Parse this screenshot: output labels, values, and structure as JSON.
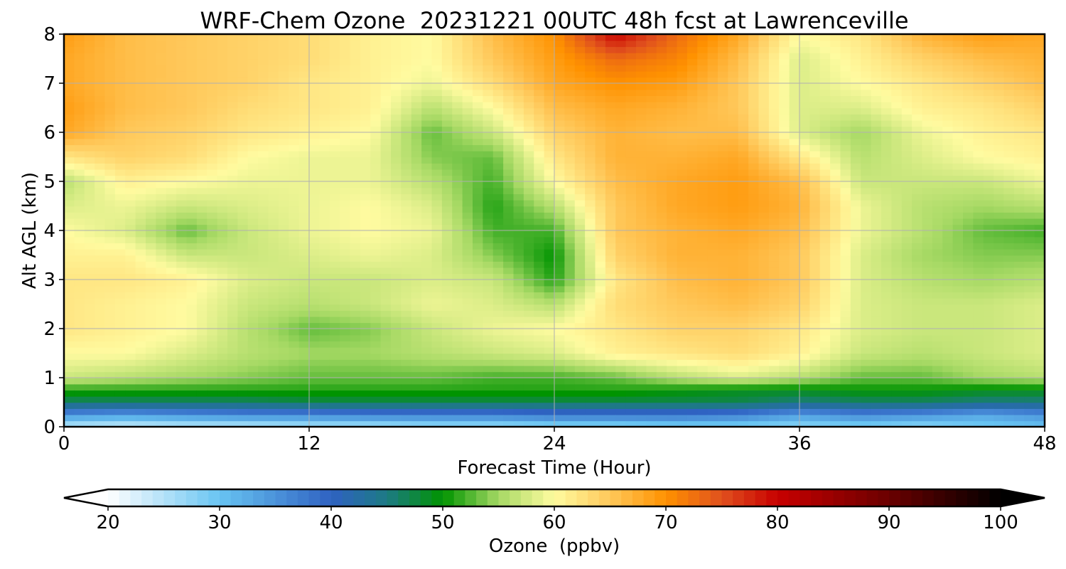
{
  "chart_data": {
    "type": "heatmap",
    "title": "WRF-Chem Ozone  20231221 00UTC 48h fcst at Lawrenceville",
    "xlabel": "Forecast Time (Hour)",
    "ylabel": "Alt AGL (km)",
    "xlim": [
      0,
      48
    ],
    "ylim": [
      0,
      8
    ],
    "x_ticks": [
      0,
      12,
      24,
      36,
      48
    ],
    "y_ticks": [
      0,
      1,
      2,
      3,
      4,
      5,
      6,
      7,
      8
    ],
    "grid": true,
    "x": [
      0,
      3,
      6,
      9,
      12,
      15,
      18,
      21,
      24,
      27,
      30,
      33,
      36,
      39,
      42,
      45,
      48
    ],
    "y": [
      0,
      0.25,
      0.5,
      0.75,
      1,
      1.5,
      2,
      2.5,
      3,
      3.5,
      4,
      4.5,
      5,
      5.5,
      6,
      6.5,
      7,
      7.5,
      8
    ],
    "values": [
      [
        24,
        23,
        24,
        24,
        25,
        25,
        26,
        26,
        27,
        27,
        28,
        28,
        27,
        28,
        27,
        29,
        30
      ],
      [
        35,
        34,
        35,
        36,
        36,
        37,
        37,
        37,
        38,
        38,
        38,
        37,
        34,
        36,
        35,
        33,
        35
      ],
      [
        46,
        46,
        46,
        46,
        47,
        47,
        47,
        47,
        47,
        47,
        47,
        47,
        45,
        46,
        46,
        45,
        45
      ],
      [
        51,
        51,
        51,
        51,
        51,
        51,
        51,
        51,
        51,
        51,
        50,
        49,
        49,
        50,
        50,
        49,
        49
      ],
      [
        57,
        56,
        55,
        54,
        53,
        53,
        53,
        52,
        52,
        53,
        56,
        58,
        56,
        53,
        53,
        55,
        56
      ],
      [
        60,
        60,
        58,
        56,
        55,
        55,
        56,
        57,
        58,
        61,
        62,
        63,
        61,
        57,
        56,
        57,
        58
      ],
      [
        62,
        61,
        60,
        56,
        53,
        54,
        57,
        59,
        60,
        62,
        64,
        64,
        62,
        58,
        57,
        57,
        58
      ],
      [
        62,
        61,
        60,
        57,
        56,
        57,
        59,
        58,
        56,
        63,
        65,
        66,
        64,
        58,
        57,
        57,
        58
      ],
      [
        62,
        62,
        61,
        58,
        57,
        57,
        58,
        57,
        51,
        62,
        66,
        67,
        65,
        58,
        56,
        55,
        56
      ],
      [
        61,
        61,
        57,
        57,
        58,
        59,
        58,
        54,
        50,
        64,
        67,
        67,
        65,
        58,
        55,
        54,
        54
      ],
      [
        60,
        58,
        53,
        57,
        59,
        60,
        59,
        52,
        52,
        65,
        67,
        68,
        66,
        59,
        56,
        53,
        52
      ],
      [
        58,
        59,
        57,
        58,
        59,
        60,
        58,
        51,
        56,
        65,
        68,
        69,
        67,
        59,
        56,
        55,
        56
      ],
      [
        56,
        61,
        60,
        59,
        59,
        59,
        56,
        52,
        60,
        66,
        68,
        69,
        66,
        57,
        57,
        57,
        59
      ],
      [
        62,
        64,
        63,
        60,
        59,
        59,
        54,
        53,
        62,
        67,
        67,
        68,
        62,
        56,
        58,
        60,
        61
      ],
      [
        68,
        65,
        64,
        62,
        61,
        60,
        53,
        57,
        64,
        67,
        66,
        66,
        58,
        55,
        59,
        61,
        62
      ],
      [
        69,
        66,
        65,
        63,
        62,
        61,
        56,
        60,
        66,
        68,
        67,
        65,
        58,
        58,
        61,
        62,
        64
      ],
      [
        68,
        66,
        65,
        64,
        62,
        61,
        59,
        63,
        68,
        70,
        69,
        65,
        58,
        60,
        62,
        64,
        66
      ],
      [
        68,
        66,
        65,
        64,
        63,
        61,
        60,
        65,
        69,
        73,
        71,
        66,
        58,
        61,
        64,
        66,
        67
      ],
      [
        69,
        66,
        65,
        64,
        63,
        61,
        60,
        66,
        70,
        80,
        73,
        68,
        60,
        62,
        67,
        69,
        68
      ]
    ],
    "colorbar": {
      "label": "Ozone  (ppbv)",
      "min": 20,
      "max": 100,
      "ticks": [
        20,
        30,
        40,
        50,
        60,
        70,
        80,
        90,
        100
      ],
      "extend": "both",
      "color_stops": [
        {
          "value": 20,
          "color": "#ffffff"
        },
        {
          "value": 30,
          "color": "#68c4f2"
        },
        {
          "value": 40,
          "color": "#2f62c2"
        },
        {
          "value": 45,
          "color": "#1d7a84"
        },
        {
          "value": 50,
          "color": "#009400"
        },
        {
          "value": 55,
          "color": "#a6d964"
        },
        {
          "value": 60,
          "color": "#fffba0"
        },
        {
          "value": 65,
          "color": "#ffc85a"
        },
        {
          "value": 70,
          "color": "#ff9200"
        },
        {
          "value": 75,
          "color": "#e0501e"
        },
        {
          "value": 80,
          "color": "#c80000"
        },
        {
          "value": 90,
          "color": "#6a0000"
        },
        {
          "value": 100,
          "color": "#000000"
        }
      ]
    }
  }
}
